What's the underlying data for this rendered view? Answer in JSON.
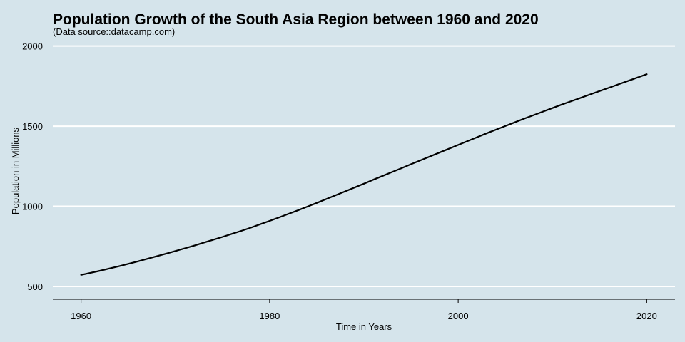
{
  "chart_data": {
    "type": "line",
    "title": "Population Growth of the South Asia Region between 1960 and 2020",
    "subtitle": "(Data source::datacamp.com)",
    "xlabel": "Time in Years",
    "ylabel": "Population in Millions",
    "xlim": [
      1957,
      2023
    ],
    "ylim": [
      420,
      2025
    ],
    "x_ticks": [
      1960,
      1980,
      2000,
      2020
    ],
    "y_ticks": [
      500,
      1000,
      1500,
      2000
    ],
    "grid": "horizontal",
    "series": [
      {
        "color": "#000000",
        "x": [
          1960,
          1961,
          1962,
          1963,
          1964,
          1965,
          1966,
          1967,
          1968,
          1969,
          1970,
          1971,
          1972,
          1973,
          1974,
          1975,
          1976,
          1977,
          1978,
          1979,
          1980,
          1981,
          1982,
          1983,
          1984,
          1985,
          1986,
          1987,
          1988,
          1989,
          1990,
          1991,
          1992,
          1993,
          1994,
          1995,
          1996,
          1997,
          1998,
          1999,
          2000,
          2001,
          2002,
          2003,
          2004,
          2005,
          2006,
          2007,
          2008,
          2009,
          2010,
          2011,
          2012,
          2013,
          2014,
          2015,
          2016,
          2017,
          2018,
          2019,
          2020
        ],
        "y": [
          572,
          585,
          598,
          612,
          626,
          641,
          656,
          672,
          688,
          704,
          721,
          738,
          755,
          773,
          791,
          809,
          828,
          847,
          867,
          888,
          909,
          931,
          953,
          975,
          998,
          1021,
          1045,
          1069,
          1093,
          1117,
          1141,
          1166,
          1190,
          1214,
          1238,
          1263,
          1287,
          1311,
          1335,
          1359,
          1383,
          1407,
          1431,
          1455,
          1478,
          1501,
          1524,
          1547,
          1569,
          1591,
          1613,
          1635,
          1656,
          1677,
          1698,
          1719,
          1740,
          1761,
          1782,
          1803,
          1824
        ]
      }
    ]
  }
}
